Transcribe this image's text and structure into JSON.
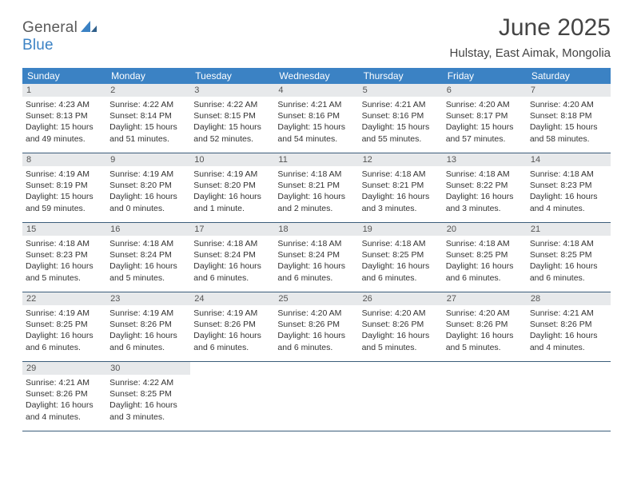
{
  "logo": {
    "part1": "General",
    "part2": "Blue"
  },
  "title": "June 2025",
  "location": "Hulstay, East Aimak, Mongolia",
  "colors": {
    "header_bg": "#3b82c4",
    "daynum_bg": "#e7e9eb",
    "rule": "#3b5d7a",
    "text": "#333333"
  },
  "day_names": [
    "Sunday",
    "Monday",
    "Tuesday",
    "Wednesday",
    "Thursday",
    "Friday",
    "Saturday"
  ],
  "weeks": [
    [
      {
        "n": "1",
        "sr": "4:23 AM",
        "ss": "8:13 PM",
        "dl": "15 hours",
        "dm": "and 49 minutes."
      },
      {
        "n": "2",
        "sr": "4:22 AM",
        "ss": "8:14 PM",
        "dl": "15 hours",
        "dm": "and 51 minutes."
      },
      {
        "n": "3",
        "sr": "4:22 AM",
        "ss": "8:15 PM",
        "dl": "15 hours",
        "dm": "and 52 minutes."
      },
      {
        "n": "4",
        "sr": "4:21 AM",
        "ss": "8:16 PM",
        "dl": "15 hours",
        "dm": "and 54 minutes."
      },
      {
        "n": "5",
        "sr": "4:21 AM",
        "ss": "8:16 PM",
        "dl": "15 hours",
        "dm": "and 55 minutes."
      },
      {
        "n": "6",
        "sr": "4:20 AM",
        "ss": "8:17 PM",
        "dl": "15 hours",
        "dm": "and 57 minutes."
      },
      {
        "n": "7",
        "sr": "4:20 AM",
        "ss": "8:18 PM",
        "dl": "15 hours",
        "dm": "and 58 minutes."
      }
    ],
    [
      {
        "n": "8",
        "sr": "4:19 AM",
        "ss": "8:19 PM",
        "dl": "15 hours",
        "dm": "and 59 minutes."
      },
      {
        "n": "9",
        "sr": "4:19 AM",
        "ss": "8:20 PM",
        "dl": "16 hours",
        "dm": "and 0 minutes."
      },
      {
        "n": "10",
        "sr": "4:19 AM",
        "ss": "8:20 PM",
        "dl": "16 hours",
        "dm": "and 1 minute."
      },
      {
        "n": "11",
        "sr": "4:18 AM",
        "ss": "8:21 PM",
        "dl": "16 hours",
        "dm": "and 2 minutes."
      },
      {
        "n": "12",
        "sr": "4:18 AM",
        "ss": "8:21 PM",
        "dl": "16 hours",
        "dm": "and 3 minutes."
      },
      {
        "n": "13",
        "sr": "4:18 AM",
        "ss": "8:22 PM",
        "dl": "16 hours",
        "dm": "and 3 minutes."
      },
      {
        "n": "14",
        "sr": "4:18 AM",
        "ss": "8:23 PM",
        "dl": "16 hours",
        "dm": "and 4 minutes."
      }
    ],
    [
      {
        "n": "15",
        "sr": "4:18 AM",
        "ss": "8:23 PM",
        "dl": "16 hours",
        "dm": "and 5 minutes."
      },
      {
        "n": "16",
        "sr": "4:18 AM",
        "ss": "8:24 PM",
        "dl": "16 hours",
        "dm": "and 5 minutes."
      },
      {
        "n": "17",
        "sr": "4:18 AM",
        "ss": "8:24 PM",
        "dl": "16 hours",
        "dm": "and 6 minutes."
      },
      {
        "n": "18",
        "sr": "4:18 AM",
        "ss": "8:24 PM",
        "dl": "16 hours",
        "dm": "and 6 minutes."
      },
      {
        "n": "19",
        "sr": "4:18 AM",
        "ss": "8:25 PM",
        "dl": "16 hours",
        "dm": "and 6 minutes."
      },
      {
        "n": "20",
        "sr": "4:18 AM",
        "ss": "8:25 PM",
        "dl": "16 hours",
        "dm": "and 6 minutes."
      },
      {
        "n": "21",
        "sr": "4:18 AM",
        "ss": "8:25 PM",
        "dl": "16 hours",
        "dm": "and 6 minutes."
      }
    ],
    [
      {
        "n": "22",
        "sr": "4:19 AM",
        "ss": "8:25 PM",
        "dl": "16 hours",
        "dm": "and 6 minutes."
      },
      {
        "n": "23",
        "sr": "4:19 AM",
        "ss": "8:26 PM",
        "dl": "16 hours",
        "dm": "and 6 minutes."
      },
      {
        "n": "24",
        "sr": "4:19 AM",
        "ss": "8:26 PM",
        "dl": "16 hours",
        "dm": "and 6 minutes."
      },
      {
        "n": "25",
        "sr": "4:20 AM",
        "ss": "8:26 PM",
        "dl": "16 hours",
        "dm": "and 6 minutes."
      },
      {
        "n": "26",
        "sr": "4:20 AM",
        "ss": "8:26 PM",
        "dl": "16 hours",
        "dm": "and 5 minutes."
      },
      {
        "n": "27",
        "sr": "4:20 AM",
        "ss": "8:26 PM",
        "dl": "16 hours",
        "dm": "and 5 minutes."
      },
      {
        "n": "28",
        "sr": "4:21 AM",
        "ss": "8:26 PM",
        "dl": "16 hours",
        "dm": "and 4 minutes."
      }
    ],
    [
      {
        "n": "29",
        "sr": "4:21 AM",
        "ss": "8:26 PM",
        "dl": "16 hours",
        "dm": "and 4 minutes."
      },
      {
        "n": "30",
        "sr": "4:22 AM",
        "ss": "8:25 PM",
        "dl": "16 hours",
        "dm": "and 3 minutes."
      },
      null,
      null,
      null,
      null,
      null
    ]
  ]
}
